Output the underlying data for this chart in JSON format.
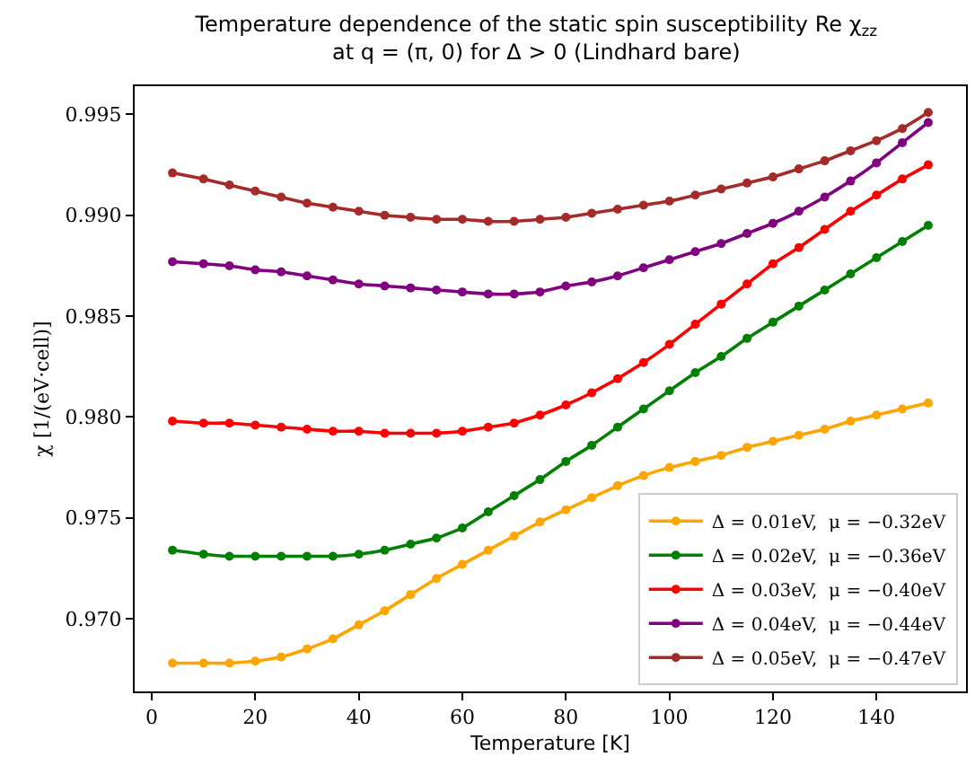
{
  "chart_data": {
    "type": "line",
    "title": "Temperature dependence of the static spin susceptibility Re χ$_{zz}$",
    "subtitle": "at q = (π, 0) for Δ > 0 (Lindhard bare)",
    "xlabel": "Temperature [K]",
    "ylabel": "χ [1/(eV·cell)]",
    "x": [
      4,
      10,
      15,
      20,
      25,
      30,
      35,
      40,
      45,
      50,
      55,
      60,
      65,
      70,
      75,
      80,
      85,
      90,
      95,
      100,
      105,
      110,
      115,
      120,
      125,
      130,
      135,
      140,
      145,
      150
    ],
    "series": [
      {
        "name": "Δ = 0.01eV,  μ = −0.32eV",
        "color": "#ffa500",
        "values": [
          0.9678,
          0.9678,
          0.9678,
          0.9679,
          0.9681,
          0.9685,
          0.969,
          0.9697,
          0.9704,
          0.9712,
          0.972,
          0.9727,
          0.9734,
          0.9741,
          0.9748,
          0.9754,
          0.976,
          0.9766,
          0.9771,
          0.9775,
          0.9778,
          0.9781,
          0.9785,
          0.9788,
          0.9791,
          0.9794,
          0.9798,
          0.9801,
          0.9804,
          0.9807
        ]
      },
      {
        "name": "Δ = 0.02eV,  μ = −0.36eV",
        "color": "#008000",
        "values": [
          0.9734,
          0.9732,
          0.9731,
          0.9731,
          0.9731,
          0.9731,
          0.9731,
          0.9732,
          0.9734,
          0.9737,
          0.974,
          0.9745,
          0.9753,
          0.9761,
          0.9769,
          0.9778,
          0.9786,
          0.9795,
          0.9804,
          0.9813,
          0.9822,
          0.983,
          0.9839,
          0.9847,
          0.9855,
          0.9863,
          0.9871,
          0.9879,
          0.9887,
          0.9895
        ]
      },
      {
        "name": "Δ = 0.03eV,  μ = −0.40eV",
        "color": "#ff0000",
        "values": [
          0.9798,
          0.9797,
          0.9797,
          0.9796,
          0.9795,
          0.9794,
          0.9793,
          0.9793,
          0.9792,
          0.9792,
          0.9792,
          0.9793,
          0.9795,
          0.9797,
          0.9801,
          0.9806,
          0.9812,
          0.9819,
          0.9827,
          0.9836,
          0.9846,
          0.9856,
          0.9866,
          0.9876,
          0.9884,
          0.9893,
          0.9902,
          0.991,
          0.9918,
          0.9925
        ]
      },
      {
        "name": "Δ = 0.04eV,  μ = −0.44eV",
        "color": "#800080",
        "values": [
          0.9877,
          0.9876,
          0.9875,
          0.9873,
          0.9872,
          0.987,
          0.9868,
          0.9866,
          0.9865,
          0.9864,
          0.9863,
          0.9862,
          0.9861,
          0.9861,
          0.9862,
          0.9865,
          0.9867,
          0.987,
          0.9874,
          0.9878,
          0.9882,
          0.9886,
          0.9891,
          0.9896,
          0.9902,
          0.9909,
          0.9917,
          0.9926,
          0.9936,
          0.9946
        ]
      },
      {
        "name": "Δ = 0.05eV,  μ = −0.47eV",
        "color": "#a52a2a",
        "values": [
          0.9921,
          0.9918,
          0.9915,
          0.9912,
          0.9909,
          0.9906,
          0.9904,
          0.9902,
          0.99,
          0.9899,
          0.9898,
          0.9898,
          0.9897,
          0.9897,
          0.9898,
          0.9899,
          0.9901,
          0.9903,
          0.9905,
          0.9907,
          0.991,
          0.9913,
          0.9916,
          0.9919,
          0.9923,
          0.9927,
          0.9932,
          0.9937,
          0.9943,
          0.9951
        ]
      }
    ],
    "xlim": [
      -3.3,
      157.3
    ],
    "ylim": [
      0.9664,
      0.9964
    ],
    "xticks": [
      0,
      20,
      40,
      60,
      80,
      100,
      120,
      140
    ],
    "yticks": [
      {
        "value": 0.97,
        "label": "0.970"
      },
      {
        "value": 0.975,
        "label": "0.975"
      },
      {
        "value": 0.98,
        "label": "0.980"
      },
      {
        "value": 0.985,
        "label": "0.985"
      },
      {
        "value": 0.99,
        "label": "0.990"
      },
      {
        "value": 0.995,
        "label": "0.995"
      }
    ],
    "legend": "bottom right",
    "marker": "circle",
    "line_style": "solid",
    "grid": false
  }
}
